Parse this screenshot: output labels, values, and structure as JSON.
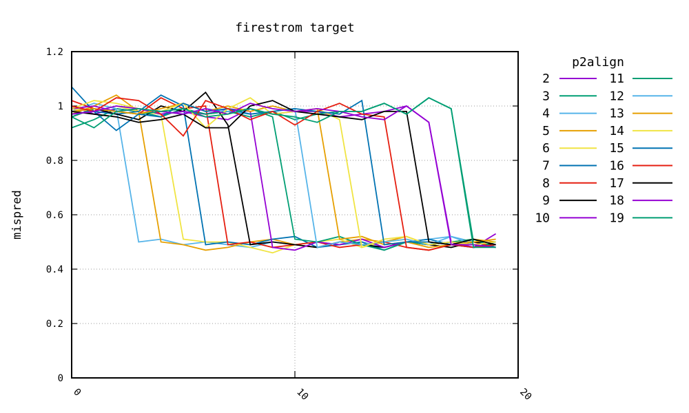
{
  "chart_data": {
    "type": "line",
    "title": "firestrom target",
    "xlabel": "",
    "ylabel": "mispred",
    "xlim": [
      0,
      20
    ],
    "ylim": [
      0,
      1.2
    ],
    "xticks": [
      0,
      10,
      20
    ],
    "yticks": [
      "0",
      "0.2",
      "0.4",
      "0.6",
      "0.8",
      "1",
      "1.2"
    ],
    "grid": true,
    "legend_title": "p2align",
    "legend_position": "right, outside plot",
    "x": [
      0,
      1,
      2,
      3,
      4,
      5,
      6,
      7,
      8,
      9,
      10,
      11,
      12,
      13,
      14,
      15,
      16,
      17,
      18,
      19
    ],
    "series": [
      {
        "name": "2",
        "color": "#9400d3",
        "values": [
          1.0,
          0.97,
          0.99,
          0.98,
          0.97,
          0.98,
          0.96,
          0.95,
          0.99,
          0.97,
          0.98,
          0.98,
          0.96,
          0.97,
          0.98,
          1.0,
          0.94,
          0.5,
          0.48,
          0.53
        ]
      },
      {
        "name": "3",
        "color": "#009e73",
        "values": [
          0.92,
          0.95,
          0.99,
          0.98,
          0.96,
          0.99,
          0.97,
          0.98,
          0.96,
          0.98,
          0.95,
          0.97,
          0.98,
          0.98,
          1.01,
          0.97,
          1.03,
          0.99,
          0.5,
          0.49
        ]
      },
      {
        "name": "4",
        "color": "#56b4e9",
        "values": [
          0.98,
          1.01,
          0.99,
          0.5,
          0.51,
          0.49,
          0.5,
          0.49,
          0.48,
          0.5,
          0.49,
          0.5,
          0.49,
          0.5,
          0.48,
          0.5,
          0.51,
          0.52,
          0.5,
          0.49
        ]
      },
      {
        "name": "5",
        "color": "#e69f00",
        "values": [
          0.97,
          1.0,
          1.04,
          0.98,
          0.5,
          0.49,
          0.47,
          0.48,
          0.5,
          0.51,
          0.49,
          0.48,
          0.5,
          0.51,
          0.5,
          0.52,
          0.49,
          0.5,
          0.51,
          0.5
        ]
      },
      {
        "name": "6",
        "color": "#f0e442",
        "values": [
          0.99,
          0.98,
          1.0,
          0.98,
          0.97,
          0.51,
          0.5,
          0.5,
          0.48,
          0.46,
          0.49,
          0.5,
          0.51,
          0.48,
          0.5,
          0.51,
          0.49,
          0.5,
          0.5,
          0.49
        ]
      },
      {
        "name": "7",
        "color": "#0072b2",
        "values": [
          1.07,
          0.98,
          0.97,
          0.98,
          1.04,
          1.0,
          0.49,
          0.5,
          0.49,
          0.51,
          0.52,
          0.48,
          0.49,
          0.5,
          0.47,
          0.5,
          0.51,
          0.49,
          0.48,
          0.5
        ]
      },
      {
        "name": "8",
        "color": "#e51e10",
        "values": [
          1.02,
          0.99,
          0.98,
          0.97,
          1.03,
          0.99,
          1.0,
          0.49,
          0.5,
          0.48,
          0.49,
          0.5,
          0.48,
          0.49,
          0.5,
          0.48,
          0.47,
          0.49,
          0.5,
          0.48
        ]
      },
      {
        "name": "9",
        "color": "#000000",
        "values": [
          0.96,
          0.99,
          0.97,
          0.95,
          1.0,
          0.98,
          1.05,
          0.93,
          0.49,
          0.5,
          0.49,
          0.48,
          0.5,
          0.49,
          0.48,
          0.5,
          0.49,
          0.48,
          0.5,
          0.49
        ]
      },
      {
        "name": "10",
        "color": "#9400d3",
        "values": [
          0.99,
          1.0,
          0.98,
          0.99,
          0.97,
          0.98,
          0.97,
          0.99,
          0.98,
          0.48,
          0.47,
          0.5,
          0.49,
          0.51,
          0.48,
          0.5,
          0.49,
          0.5,
          0.48,
          0.49
        ]
      },
      {
        "name": "11",
        "color": "#009e73",
        "values": [
          0.96,
          0.99,
          0.98,
          0.97,
          0.98,
          0.99,
          0.97,
          0.98,
          0.99,
          0.96,
          0.51,
          0.5,
          0.52,
          0.49,
          0.47,
          0.5,
          0.49,
          0.5,
          0.51,
          0.48
        ]
      },
      {
        "name": "12",
        "color": "#56b4e9",
        "values": [
          0.97,
          0.98,
          1.0,
          0.99,
          0.98,
          0.97,
          0.99,
          0.98,
          0.97,
          0.98,
          0.99,
          0.48,
          0.5,
          0.49,
          0.5,
          0.51,
          0.49,
          0.52,
          0.49,
          0.5
        ]
      },
      {
        "name": "13",
        "color": "#e69f00",
        "values": [
          0.98,
          0.99,
          0.98,
          0.97,
          0.99,
          1.01,
          0.98,
          1.0,
          0.98,
          1.0,
          0.98,
          0.99,
          0.51,
          0.52,
          0.49,
          0.5,
          0.48,
          0.49,
          0.5,
          0.51
        ]
      },
      {
        "name": "14",
        "color": "#f0e442",
        "values": [
          0.99,
          1.02,
          1.01,
          0.99,
          0.98,
          1.01,
          0.92,
          0.99,
          1.03,
          0.97,
          0.98,
          0.99,
          0.95,
          0.48,
          0.51,
          0.52,
          0.49,
          0.5,
          0.49,
          0.5
        ]
      },
      {
        "name": "15",
        "color": "#0072b2",
        "values": [
          0.97,
          0.98,
          0.91,
          0.97,
          0.96,
          1.01,
          0.98,
          0.99,
          0.97,
          0.98,
          0.99,
          0.98,
          0.97,
          1.02,
          0.49,
          0.5,
          0.5,
          0.49,
          0.48,
          0.49
        ]
      },
      {
        "name": "16",
        "color": "#e51e10",
        "values": [
          1.0,
          0.98,
          1.03,
          1.02,
          0.97,
          0.89,
          1.02,
          0.99,
          0.95,
          0.98,
          0.93,
          0.98,
          1.01,
          0.97,
          0.96,
          0.48,
          0.47,
          0.49,
          0.48,
          0.49
        ]
      },
      {
        "name": "17",
        "color": "#000000",
        "values": [
          0.98,
          0.97,
          0.96,
          0.94,
          0.95,
          0.97,
          0.92,
          0.92,
          1.0,
          1.02,
          0.98,
          0.97,
          0.96,
          0.95,
          0.98,
          0.98,
          0.5,
          0.49,
          0.51,
          0.49
        ]
      },
      {
        "name": "18",
        "color": "#9400d3",
        "values": [
          0.97,
          0.98,
          1.0,
          0.99,
          0.98,
          0.97,
          0.99,
          0.97,
          1.01,
          0.99,
          0.98,
          0.99,
          0.98,
          0.96,
          0.95,
          1.0,
          0.94,
          0.49,
          0.49,
          0.48
        ]
      },
      {
        "name": "19",
        "color": "#009e73",
        "values": [
          0.96,
          0.92,
          0.98,
          0.99,
          0.98,
          0.99,
          0.96,
          0.97,
          0.99,
          0.97,
          0.96,
          0.94,
          0.98,
          0.98,
          1.01,
          0.97,
          1.03,
          0.99,
          0.48,
          0.48
        ]
      }
    ]
  }
}
